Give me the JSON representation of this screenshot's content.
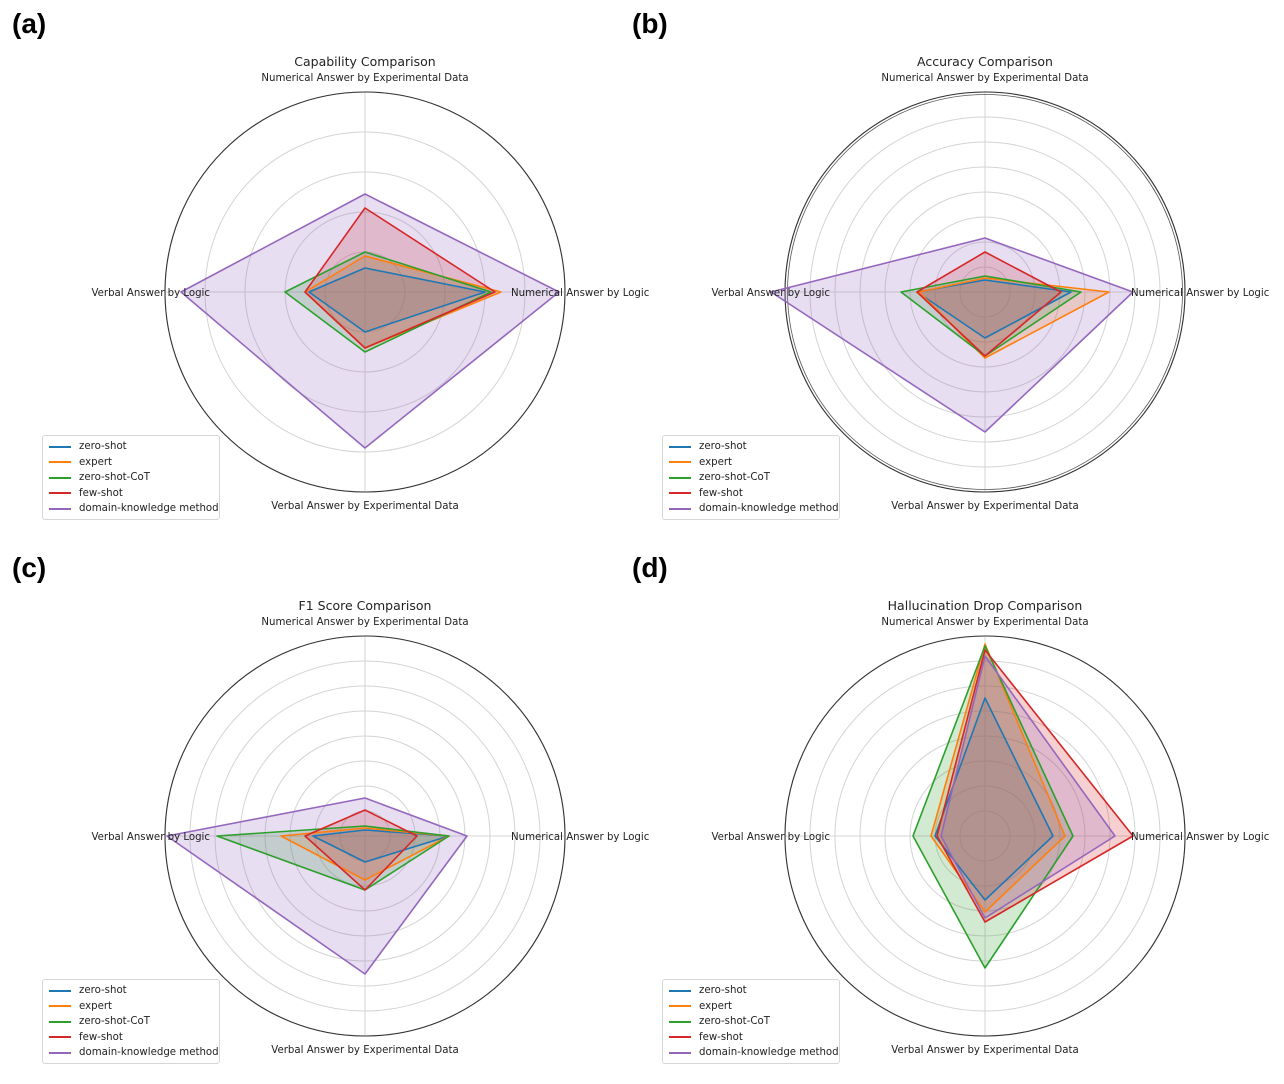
{
  "axes": [
    "Numerical Answer by Experimental Data",
    "Numerical Answer by Logic",
    "Verbal Answer by Experimental Data",
    "Verbal Answer by Logic"
  ],
  "legend": [
    "zero-shot",
    "expert",
    "zero-shot-CoT",
    "few-shot",
    "domain-knowledge method"
  ],
  "colors": [
    "#1f77b4",
    "#ff7f0e",
    "#2ca02c",
    "#d62728",
    "#9467bd"
  ],
  "panels": [
    {
      "letter": "(a)",
      "title": "Capability Comparison"
    },
    {
      "letter": "(b)",
      "title": "Accuracy Comparison"
    },
    {
      "letter": "(c)",
      "title": "F1 Score Comparison"
    },
    {
      "letter": "(d)",
      "title": "Hallucination Drop Comparison"
    }
  ],
  "chart_data": [
    {
      "type": "radar",
      "title": "Capability Comparison",
      "axes": [
        "Numerical Answer by Experimental Data",
        "Numerical Answer by Logic",
        "Verbal Answer by Experimental Data",
        "Verbal Answer by Logic"
      ],
      "rmax": 1.0,
      "rings": 5,
      "series": [
        {
          "name": "zero-shot",
          "values": [
            0.12,
            0.6,
            0.2,
            0.28
          ]
        },
        {
          "name": "expert",
          "values": [
            0.18,
            0.68,
            0.28,
            0.3
          ]
        },
        {
          "name": "zero-shot-CoT",
          "values": [
            0.2,
            0.63,
            0.3,
            0.4
          ]
        },
        {
          "name": "few-shot",
          "values": [
            0.42,
            0.65,
            0.28,
            0.3
          ]
        },
        {
          "name": "domain-knowledge method",
          "values": [
            0.49,
            0.97,
            0.78,
            0.92
          ]
        }
      ]
    },
    {
      "type": "radar",
      "title": "Accuracy Comparison",
      "axes": [
        "Numerical Answer by Experimental Data",
        "Numerical Answer by Logic",
        "Verbal Answer by Experimental Data",
        "Verbal Answer by Logic"
      ],
      "rmax": 1.0,
      "rings": 8,
      "series": [
        {
          "name": "zero-shot",
          "values": [
            0.06,
            0.43,
            0.23,
            0.34
          ]
        },
        {
          "name": "expert",
          "values": [
            0.07,
            0.62,
            0.33,
            0.33
          ]
        },
        {
          "name": "zero-shot-CoT",
          "values": [
            0.08,
            0.48,
            0.32,
            0.42
          ]
        },
        {
          "name": "few-shot",
          "values": [
            0.2,
            0.38,
            0.32,
            0.34
          ]
        },
        {
          "name": "domain-knowledge method",
          "values": [
            0.27,
            0.74,
            0.7,
            1.07
          ]
        }
      ]
    },
    {
      "type": "radar",
      "title": "F1 Score Comparison",
      "axes": [
        "Numerical Answer by Experimental Data",
        "Numerical Answer by Logic",
        "Verbal Answer by Experimental Data",
        "Verbal Answer by Logic"
      ],
      "rmax": 1.0,
      "rings": 8,
      "series": [
        {
          "name": "zero-shot",
          "values": [
            0.03,
            0.42,
            0.13,
            0.26
          ]
        },
        {
          "name": "expert",
          "values": [
            0.04,
            0.42,
            0.22,
            0.42
          ]
        },
        {
          "name": "zero-shot-CoT",
          "values": [
            0.05,
            0.42,
            0.27,
            0.74
          ]
        },
        {
          "name": "few-shot",
          "values": [
            0.13,
            0.26,
            0.27,
            0.3
          ]
        },
        {
          "name": "domain-knowledge method",
          "values": [
            0.19,
            0.51,
            0.69,
            0.99
          ]
        }
      ]
    },
    {
      "type": "radar",
      "title": "Hallucination Drop Comparison",
      "axes": [
        "Numerical Answer by Experimental Data",
        "Numerical Answer by Logic",
        "Verbal Answer by Experimental Data",
        "Verbal Answer by Logic"
      ],
      "rmax": 1.0,
      "rings": 8,
      "series": [
        {
          "name": "zero-shot",
          "values": [
            0.69,
            0.34,
            0.32,
            0.25
          ]
        },
        {
          "name": "expert",
          "values": [
            0.96,
            0.4,
            0.38,
            0.27
          ]
        },
        {
          "name": "zero-shot-CoT",
          "values": [
            0.95,
            0.44,
            0.66,
            0.36
          ]
        },
        {
          "name": "few-shot",
          "values": [
            0.93,
            0.74,
            0.43,
            0.24
          ]
        },
        {
          "name": "domain-knowledge method",
          "values": [
            0.9,
            0.65,
            0.41,
            0.22
          ]
        }
      ]
    }
  ]
}
